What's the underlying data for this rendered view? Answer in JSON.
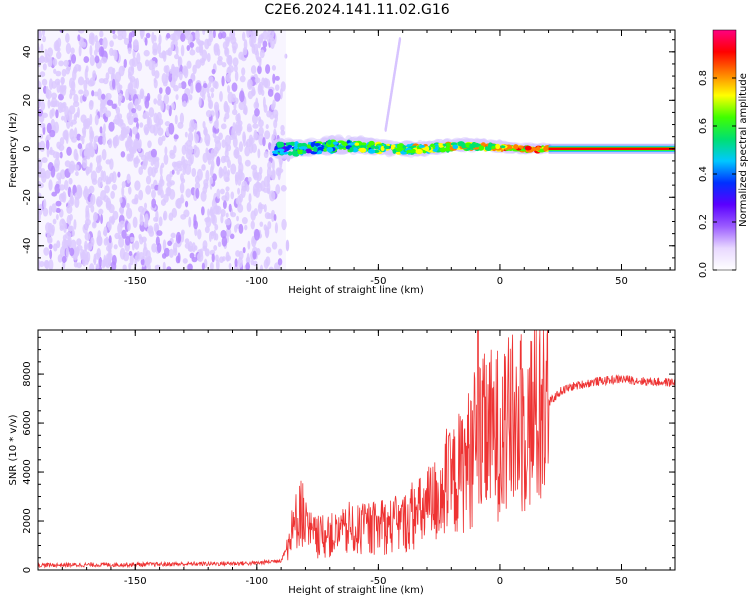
{
  "title": "C2E6.2024.141.11.02.G16",
  "chart_data": [
    {
      "type": "heatmap",
      "xlabel": "Height of straight line (km)",
      "ylabel": "Frequency (Hz)",
      "xlim": [
        -190,
        72
      ],
      "ylim": [
        -50,
        49
      ],
      "xticks": [
        -150,
        -100,
        -50,
        0,
        50
      ],
      "yticks": [
        -40,
        -20,
        0,
        20,
        40
      ],
      "colorbar": {
        "label": "Normalized spectral amplitude",
        "range": [
          0,
          1
        ],
        "ticks": [
          0.0,
          0.2,
          0.4,
          0.6,
          0.8
        ],
        "colors": [
          "#ffffff",
          "#e8d8ff",
          "#9b5cff",
          "#5a00ff",
          "#0030ff",
          "#00c8ff",
          "#00e070",
          "#40ff00",
          "#ffff00",
          "#ff8000",
          "#ff0000",
          "#ff0080"
        ]
      },
      "regions": [
        {
          "name": "noise",
          "x_range": [
            -190,
            -88
          ],
          "freq_range": [
            -50,
            49
          ],
          "amplitude": 0.1
        },
        {
          "name": "signal",
          "x_range": [
            -93,
            20
          ],
          "freq_center": 0,
          "amplitude": 0.5
        },
        {
          "name": "carrier",
          "x_range": [
            20,
            72
          ],
          "freq_center": 0,
          "amplitude": 0.95
        }
      ],
      "grid": false
    },
    {
      "type": "line",
      "xlabel": "Height of straight line (km)",
      "ylabel": "SNR (10 * v/v)",
      "xlim": [
        -190,
        72
      ],
      "ylim": [
        0,
        9800
      ],
      "xticks": [
        -150,
        -100,
        -50,
        0,
        50
      ],
      "yticks": [
        0,
        2000,
        4000,
        6000,
        8000
      ],
      "color": "#ee3333",
      "x": [
        -190,
        -150,
        -100,
        -90,
        -85,
        -82,
        -80,
        -75,
        -70,
        -60,
        -50,
        -40,
        -30,
        -20,
        -15,
        -10,
        -5,
        0,
        5,
        10,
        15,
        20,
        25,
        30,
        40,
        50,
        60,
        72
      ],
      "y": [
        200,
        220,
        280,
        400,
        1500,
        2800,
        1600,
        1300,
        1400,
        1600,
        1700,
        1900,
        2500,
        3500,
        4200,
        5000,
        5500,
        5600,
        5900,
        6000,
        6300,
        6800,
        7300,
        7500,
        7700,
        7800,
        7700,
        7650
      ],
      "grid": false
    }
  ]
}
